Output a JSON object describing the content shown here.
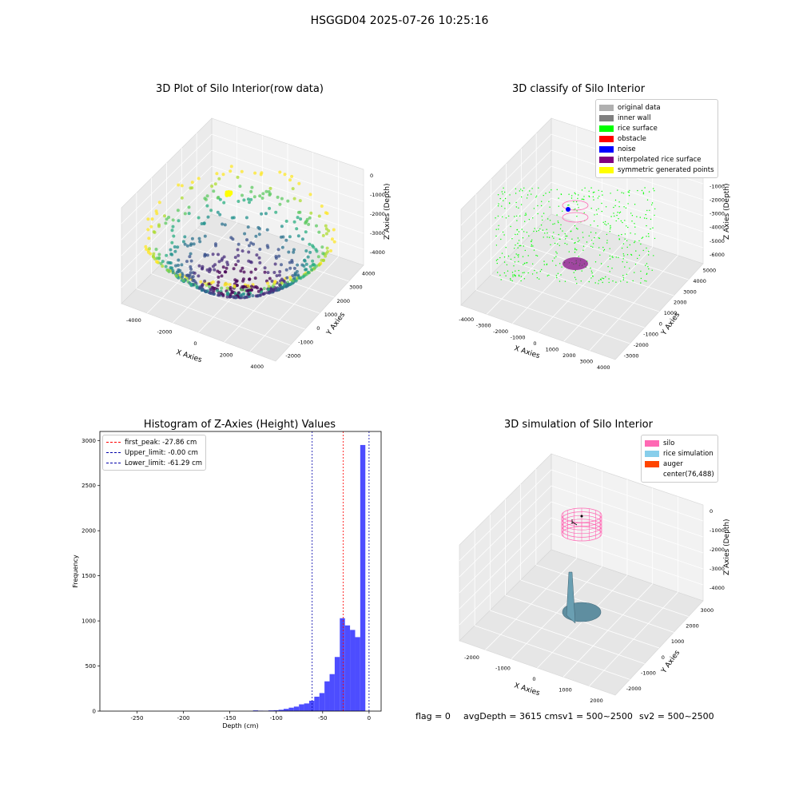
{
  "figure_title": "HSGGD04 2025-07-26 10:25:16",
  "status_line": {
    "flag": "flag = 0",
    "avg_depth": "avgDepth = 3615 cmsv1 = 500~2500",
    "sv2": "sv2 = 500~2500"
  },
  "colors": {
    "original_data": "#b0b0b0",
    "inner_wall": "#808080",
    "rice_surface": "#00ff00",
    "obstacle": "#ff0000",
    "noise": "#0000ff",
    "interpolated": "#800080",
    "symmetric": "#ffff00",
    "silo": "#ff69b4",
    "rice_simulation": "#87ceeb",
    "auger": "#ff4500",
    "hist_bar": "#4d4dff",
    "first_peak_line": "#ff0000",
    "limit_line": "#0000aa"
  },
  "chart_data": [
    {
      "type": "scatter",
      "title": "3D Plot of Silo Interior(row data)",
      "xlabel": "X Axies",
      "ylabel": "Y Axies",
      "zlabel": "Z Axies (Depth)",
      "x_ticks": [
        "-4000",
        "-2000",
        "0",
        "2000",
        "4000"
      ],
      "y_ticks": [
        "-2000",
        "-1000",
        "0",
        "1000",
        "2000",
        "3000",
        "4000"
      ],
      "z_ticks": [
        "0",
        "-1000",
        "-2000",
        "-3000",
        "-4000"
      ],
      "xlim": [
        -4000,
        4000
      ],
      "ylim": [
        -2000,
        4000
      ],
      "zlim": [
        -4500,
        0
      ],
      "colormap": "viridis",
      "points_description": "bowl-shaped point cloud, deepest near center"
    },
    {
      "type": "scatter",
      "title": "3D classify of Silo Interior",
      "xlabel": "X Axies",
      "ylabel": "Y Axies",
      "zlabel": "Z Axies (Depth)",
      "x_ticks": [
        "-4000",
        "-3000",
        "-2000",
        "-1000",
        "0",
        "1000",
        "2000",
        "3000",
        "4000"
      ],
      "y_ticks": [
        "-3000",
        "-2000",
        "-1000",
        "0",
        "1000",
        "2000",
        "3000",
        "4000",
        "5000"
      ],
      "z_ticks": [
        "0",
        "-1000",
        "-2000",
        "-3000",
        "-4000",
        "-5000",
        "-6000"
      ],
      "legend": [
        "original data",
        "inner wall",
        "rice surface",
        "obstacle",
        "noise",
        "interpolated rice surface",
        "symmetric generated points"
      ],
      "legend_placement": "top-right"
    },
    {
      "type": "bar",
      "title": "Histogram of Z-Axies (Height) Values",
      "xlabel": "Depth (cm)",
      "ylabel": "Frequency",
      "xlim": [
        -290,
        13
      ],
      "ylim": [
        0,
        3100
      ],
      "x_ticks": [
        -250,
        -200,
        -150,
        -100,
        -50,
        0
      ],
      "y_ticks": [
        0,
        500,
        1000,
        1500,
        2000,
        2500,
        3000
      ],
      "bin_width": 5.5,
      "bin_starts": [
        -125,
        -119.5,
        -114,
        -108.5,
        -103,
        -97.5,
        -92,
        -86.5,
        -81,
        -75.5,
        -70,
        -64.5,
        -59,
        -53.5,
        -48,
        -42.5,
        -37,
        -31.5,
        -26,
        -20.5,
        -15,
        -9.5,
        -4,
        1.5
      ],
      "values": [
        8,
        5,
        4,
        8,
        10,
        15,
        25,
        38,
        50,
        75,
        85,
        115,
        160,
        200,
        330,
        410,
        600,
        1030,
        950,
        900,
        820,
        2950,
        0,
        0
      ],
      "lines": [
        {
          "label": "first_peak: -27.86 cm",
          "x": -27.86,
          "kind": "first_peak"
        },
        {
          "label": "Upper_limit: -0.00 cm",
          "x": 0.0,
          "kind": "limit"
        },
        {
          "label": "Lower_limit: -61.29 cm",
          "x": -61.29,
          "kind": "limit"
        }
      ],
      "legend_placement": "top-left"
    },
    {
      "type": "scatter",
      "title": "3D simulation of Silo Interior",
      "xlabel": "X Axies",
      "ylabel": "Y Axies",
      "zlabel": "Z Axies (Depth)",
      "x_ticks": [
        "-2000",
        "-1000",
        "0",
        "1000",
        "2000"
      ],
      "y_ticks": [
        "-2000",
        "-1000",
        "0",
        "1000",
        "2000",
        "3000"
      ],
      "z_ticks": [
        "0",
        "-1000",
        "-2000",
        "-3000",
        "-4000"
      ],
      "legend": [
        "silo",
        "rice simulation",
        "auger",
        "center(76,488)"
      ],
      "legend_placement": "top-right"
    }
  ]
}
